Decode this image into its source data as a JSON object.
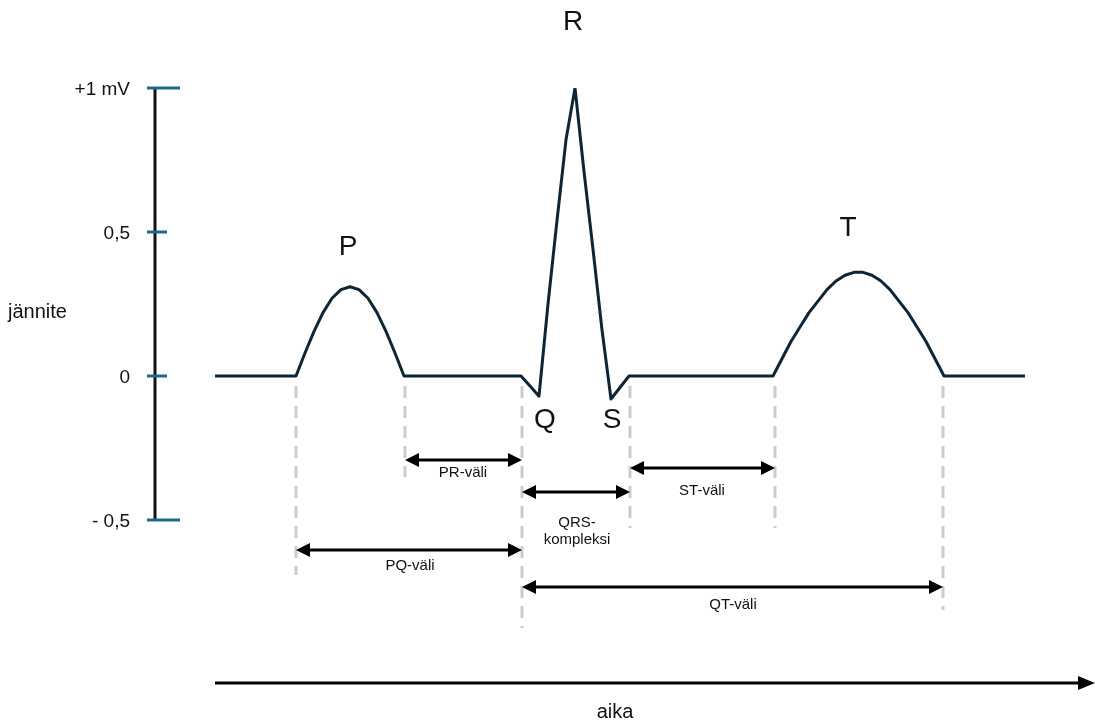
{
  "chart_data": {
    "type": "line",
    "ylabel": "jännite",
    "categories": [
      null,
      null,
      null,
      null,
      null,
      null,
      null,
      null,
      null,
      null,
      null,
      null,
      null,
      null,
      null,
      null,
      null,
      null,
      null,
      null,
      null,
      null,
      null,
      null,
      null,
      null,
      null,
      null,
      null,
      null,
      null,
      null,
      null,
      null,
      null,
      null,
      null,
      null,
      null,
      null,
      null,
      null,
      null,
      null,
      null,
      null,
      null,
      null,
      null,
      null,
      null,
      null,
      null,
      null,
      null,
      null,
      null,
      null,
      null,
      null,
      null,
      null,
      null,
      null,
      null,
      null,
      null,
      null,
      null,
      null,
      null,
      null,
      null,
      null,
      null,
      null,
      null,
      null,
      null,
      null,
      null,
      null,
      null,
      null,
      null,
      null,
      null,
      null,
      null,
      null,
      null
    ],
    "series": [
      {
        "color": "#0d2535",
        "values": [
          0,
          0,
          0,
          0,
          0,
          0,
          0,
          0,
          0,
          0,
          0.08,
          0.155,
          0.22,
          0.27,
          0.3,
          0.31,
          0.3,
          0.27,
          0.22,
          0.155,
          0.08,
          0,
          0,
          0,
          0,
          0,
          0,
          0,
          0,
          0,
          0,
          0,
          0,
          0,
          0,
          -0.035,
          -0.07,
          0.25,
          0.54,
          0.82,
          1,
          0.71,
          0.44,
          0.16,
          -0.08,
          -0.04,
          0,
          0,
          0,
          0,
          0,
          0,
          0,
          0,
          0,
          0,
          0,
          0,
          0,
          0,
          0,
          0,
          0,
          0.06,
          0.12,
          0.17,
          0.22,
          0.26,
          0.3,
          0.33,
          0.35,
          0.36,
          0.36,
          0.35,
          0.33,
          0.3,
          0.26,
          0.22,
          0.17,
          0.12,
          0.06,
          0,
          0,
          0,
          0,
          0,
          0,
          0,
          0,
          0,
          0
        ]
      }
    ],
    "ylim": [
      -0.5,
      1
    ],
    "yticks": [
      {
        "value": 1,
        "label": "+1 mV"
      },
      {
        "value": 0.5,
        "label": "0,5"
      },
      0,
      {
        "value": -0.5,
        "label": "- 0,5"
      }
    ],
    "grid": false,
    "marker": "none",
    "line_style": "solid",
    "tick_labels": "y",
    "annotations": [
      "P",
      "Q",
      "R",
      "S",
      "T",
      "PR-väli",
      "QRS-kompleksi",
      "ST-väli",
      "PQ-väli",
      "QT-väli",
      "aika"
    ]
  }
}
